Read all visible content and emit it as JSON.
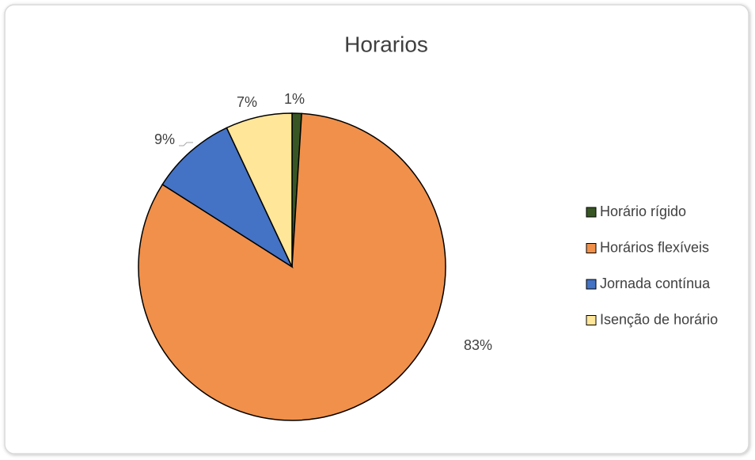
{
  "chart_data": {
    "type": "pie",
    "title": "Horarios",
    "categories": [
      "Horário rígido",
      "Horários flexíveis",
      "Jornada contínua",
      "Isenção de horário"
    ],
    "values": [
      1,
      83,
      9,
      7
    ],
    "value_labels": [
      "1%",
      "83%",
      "9%",
      "7%"
    ],
    "colors": [
      "#375623",
      "#F0904A",
      "#4472C4",
      "#FFE699"
    ],
    "legend": "right"
  }
}
